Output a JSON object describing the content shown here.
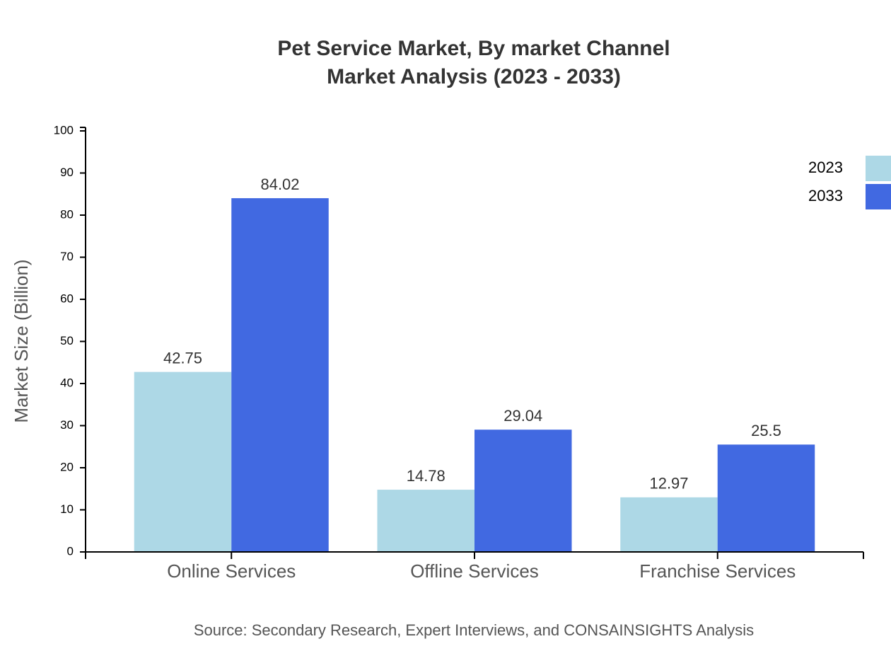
{
  "chart_data": {
    "type": "bar",
    "title": "Pet Service Market, By market Channel",
    "subtitle": "Market Analysis (2023 - 2033)",
    "y_label": "Market Size (Billion)",
    "source": "Source: Secondary Research, Expert Interviews, and CONSAINSIGHTS Analysis",
    "categories": [
      "Online Services",
      "Offline Services",
      "Franchise Services"
    ],
    "series": [
      {
        "name": "2023",
        "color": "#add8e6",
        "values": [
          42.75,
          14.78,
          12.97
        ]
      },
      {
        "name": "2033",
        "color": "#4169e1",
        "values": [
          84.02,
          29.04,
          25.5
        ]
      }
    ],
    "ylim": [
      0,
      100
    ],
    "yticks": [
      0,
      10,
      20,
      30,
      40,
      50,
      60,
      70,
      80,
      90,
      100
    ],
    "legend": "top-right"
  }
}
